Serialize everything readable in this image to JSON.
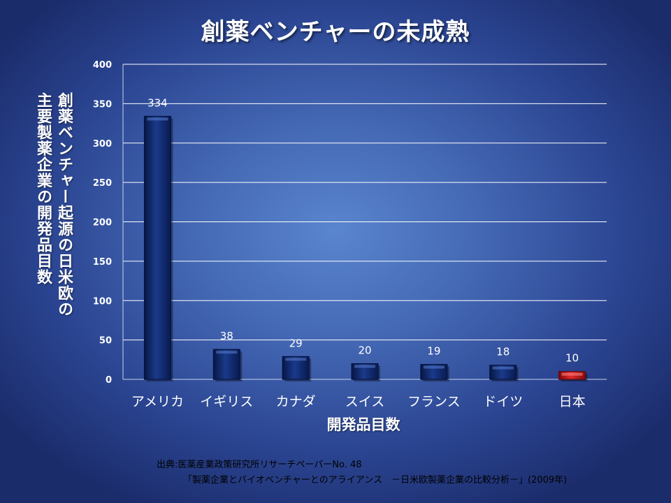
{
  "chart_data": {
    "type": "bar",
    "title": "創薬ベンチャーの未成熟",
    "ylabel": "創薬ベンチャー起源の日米欧の\n主要製薬企業の開発品目数",
    "xlabel": "開発品目数",
    "categories": [
      "アメリカ",
      "イギリス",
      "カナダ",
      "スイス",
      "フランス",
      "ドイツ",
      "日本"
    ],
    "values": [
      334,
      38,
      29,
      20,
      19,
      18,
      10
    ],
    "data_labels": [
      "334",
      "38",
      "29",
      "20",
      "19",
      "18",
      "10"
    ],
    "ylim": [
      0,
      400
    ],
    "yticks": [
      0,
      50,
      100,
      150,
      200,
      250,
      300,
      350,
      400
    ],
    "grid": true,
    "legend": "none",
    "colors": {
      "bar": "#112a6e",
      "highlight": "#c21818",
      "grid": "#ffffff"
    },
    "highlight_category": "日本"
  },
  "source": {
    "line1": "出典:医薬産業政策研究所リサーチペーパーNo. 48",
    "line2": "「製薬企業とバイオベンチャーとのアライアンス　－日米欧製薬企業の比較分析－」(2009年)"
  }
}
